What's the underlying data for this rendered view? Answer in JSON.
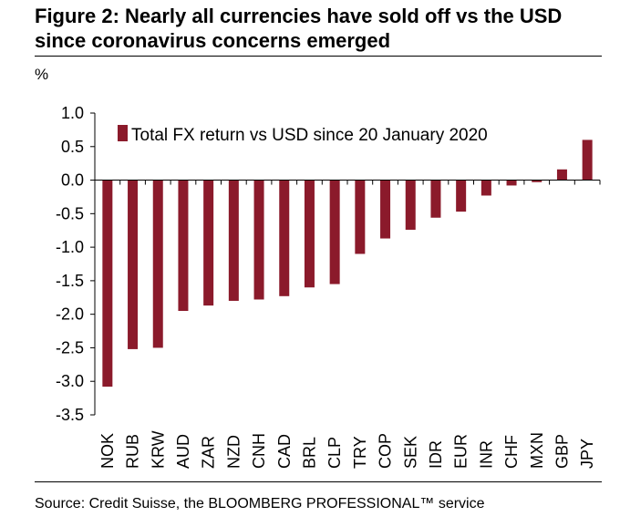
{
  "title": "Figure 2: Nearly all currencies have sold off vs the USD since coronavirus concerns emerged",
  "unit_label": "%",
  "source": "Source: Credit Suisse, the BLOOMBERG PROFESSIONAL™ service",
  "colors": {
    "bar": "#8B1A2B"
  },
  "chart_data": {
    "type": "bar",
    "categories": [
      "NOK",
      "RUB",
      "KRW",
      "AUD",
      "ZAR",
      "NZD",
      "CNH",
      "CAD",
      "BRL",
      "CLP",
      "TRY",
      "COP",
      "SEK",
      "IDR",
      "EUR",
      "INR",
      "CHF",
      "MXN",
      "GBP",
      "JPY"
    ],
    "series": [
      {
        "name": "Total FX return vs USD since 20 January 2020",
        "values": [
          -3.08,
          -2.52,
          -2.5,
          -1.95,
          -1.87,
          -1.8,
          -1.78,
          -1.73,
          -1.6,
          -1.55,
          -1.1,
          -0.87,
          -0.74,
          -0.56,
          -0.47,
          -0.23,
          -0.08,
          -0.03,
          0.16,
          0.6
        ]
      }
    ],
    "ylim": [
      -3.5,
      1.0
    ],
    "yticks": [
      "1.0",
      "0.5",
      "0.0",
      "-0.5",
      "-1.0",
      "-1.5",
      "-2.0",
      "-2.5",
      "-3.0",
      "-3.5"
    ],
    "ytick_values": [
      1.0,
      0.5,
      0.0,
      -0.5,
      -1.0,
      -1.5,
      -2.0,
      -2.5,
      -3.0,
      -3.5
    ],
    "legend_position": "top"
  }
}
